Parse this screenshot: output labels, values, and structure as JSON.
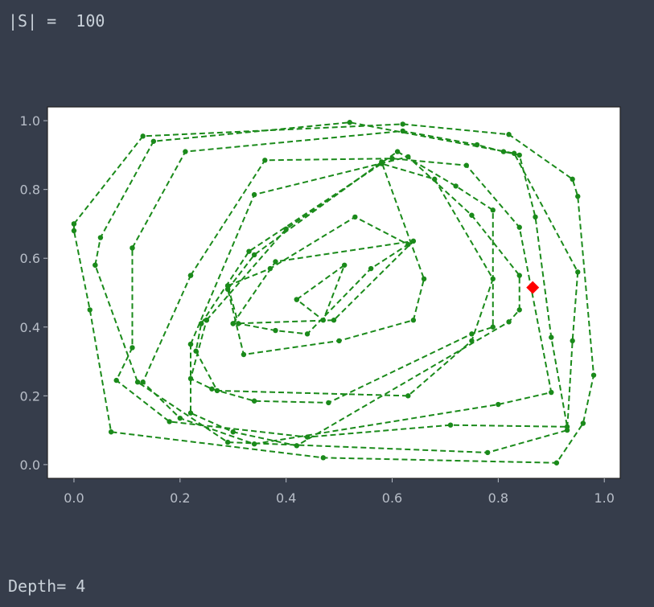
{
  "output": {
    "set_size_line": "|S| =  100",
    "depth_line": "Depth= 4"
  },
  "colors": {
    "background": "#363d4b",
    "plot_bg": "#ffffff",
    "hull": "#1a8a1a",
    "marker": "#ff0000",
    "text": "#c9d1d9"
  },
  "chart_data": {
    "type": "scatter",
    "title": "",
    "xlabel": "",
    "ylabel": "",
    "xlim": [
      -0.05,
      1.03
    ],
    "ylim": [
      -0.04,
      1.04
    ],
    "xticks": [
      0.0,
      0.2,
      0.4,
      0.6,
      0.8,
      1.0
    ],
    "yticks": [
      0.0,
      0.2,
      0.4,
      0.6,
      0.8,
      1.0
    ],
    "xtick_labels": [
      "0.0",
      "0.2",
      "0.4",
      "0.6",
      "0.8",
      "1.0"
    ],
    "ytick_labels": [
      "0.0",
      "0.2",
      "0.4",
      "0.6",
      "0.8",
      "1.0"
    ],
    "grid": false,
    "series": [
      {
        "style": "green dashed line with dot markers",
        "layers": [
          [
            [
              0.0,
              0.7
            ],
            [
              0.13,
              0.955
            ],
            [
              0.62,
              0.99
            ],
            [
              0.82,
              0.96
            ],
            [
              0.94,
              0.83
            ],
            [
              0.95,
              0.78
            ],
            [
              0.98,
              0.26
            ],
            [
              0.96,
              0.12
            ],
            [
              0.91,
              0.005
            ],
            [
              0.47,
              0.02
            ],
            [
              0.07,
              0.095
            ],
            [
              0.03,
              0.45
            ],
            [
              0.0,
              0.68
            ],
            [
              0.0,
              0.7
            ]
          ],
          [
            [
              0.04,
              0.58
            ],
            [
              0.05,
              0.66
            ],
            [
              0.15,
              0.94
            ],
            [
              0.52,
              0.995
            ],
            [
              0.83,
              0.905
            ],
            [
              0.95,
              0.56
            ],
            [
              0.94,
              0.36
            ],
            [
              0.93,
              0.1
            ],
            [
              0.78,
              0.035
            ],
            [
              0.29,
              0.065
            ],
            [
              0.12,
              0.24
            ],
            [
              0.04,
              0.58
            ]
          ],
          [
            [
              0.11,
              0.63
            ],
            [
              0.21,
              0.91
            ],
            [
              0.62,
              0.97
            ],
            [
              0.76,
              0.93
            ],
            [
              0.81,
              0.91
            ],
            [
              0.84,
              0.9
            ],
            [
              0.87,
              0.72
            ],
            [
              0.9,
              0.37
            ],
            [
              0.93,
              0.11
            ],
            [
              0.71,
              0.115
            ],
            [
              0.44,
              0.08
            ],
            [
              0.18,
              0.125
            ],
            [
              0.08,
              0.245
            ],
            [
              0.11,
              0.34
            ],
            [
              0.11,
              0.63
            ]
          ],
          [
            [
              0.22,
              0.55
            ],
            [
              0.36,
              0.885
            ],
            [
              0.6,
              0.89
            ],
            [
              0.74,
              0.87
            ],
            [
              0.84,
              0.69
            ],
            [
              0.9,
              0.21
            ],
            [
              0.8,
              0.175
            ],
            [
              0.34,
              0.06
            ],
            [
              0.2,
              0.135
            ],
            [
              0.13,
              0.24
            ],
            [
              0.22,
              0.55
            ]
          ],
          [
            [
              0.22,
              0.35
            ],
            [
              0.34,
              0.785
            ],
            [
              0.63,
              0.895
            ],
            [
              0.75,
              0.725
            ],
            [
              0.84,
              0.55
            ],
            [
              0.84,
              0.45
            ],
            [
              0.82,
              0.415
            ],
            [
              0.42,
              0.055
            ],
            [
              0.3,
              0.095
            ],
            [
              0.22,
              0.15
            ],
            [
              0.22,
              0.35
            ]
          ],
          [
            [
              0.25,
              0.42
            ],
            [
              0.4,
              0.685
            ],
            [
              0.61,
              0.91
            ],
            [
              0.72,
              0.81
            ],
            [
              0.79,
              0.74
            ],
            [
              0.79,
              0.4
            ],
            [
              0.75,
              0.38
            ],
            [
              0.48,
              0.18
            ],
            [
              0.34,
              0.185
            ],
            [
              0.26,
              0.22
            ],
            [
              0.22,
              0.25
            ],
            [
              0.25,
              0.42
            ]
          ],
          [
            [
              0.24,
              0.41
            ],
            [
              0.33,
              0.62
            ],
            [
              0.58,
              0.875
            ],
            [
              0.68,
              0.83
            ],
            [
              0.79,
              0.54
            ],
            [
              0.75,
              0.36
            ],
            [
              0.63,
              0.2
            ],
            [
              0.27,
              0.215
            ],
            [
              0.23,
              0.33
            ],
            [
              0.24,
              0.41
            ]
          ],
          [
            [
              0.29,
              0.51
            ],
            [
              0.34,
              0.61
            ],
            [
              0.58,
              0.88
            ],
            [
              0.66,
              0.54
            ],
            [
              0.64,
              0.42
            ],
            [
              0.5,
              0.36
            ],
            [
              0.32,
              0.32
            ],
            [
              0.29,
              0.51
            ]
          ],
          [
            [
              0.29,
              0.52
            ],
            [
              0.37,
              0.57
            ],
            [
              0.53,
              0.72
            ],
            [
              0.63,
              0.64
            ],
            [
              0.56,
              0.57
            ],
            [
              0.44,
              0.38
            ],
            [
              0.38,
              0.39
            ],
            [
              0.31,
              0.41
            ],
            [
              0.29,
              0.52
            ]
          ],
          [
            [
              0.3,
              0.41
            ],
            [
              0.38,
              0.59
            ],
            [
              0.64,
              0.65
            ],
            [
              0.49,
              0.42
            ],
            [
              0.3,
              0.41
            ]
          ],
          [
            [
              0.42,
              0.48
            ],
            [
              0.51,
              0.58
            ],
            [
              0.47,
              0.42
            ],
            [
              0.42,
              0.48
            ]
          ]
        ]
      },
      {
        "style": "red diamond marker",
        "points": [
          [
            0.865,
            0.515
          ]
        ]
      }
    ]
  }
}
